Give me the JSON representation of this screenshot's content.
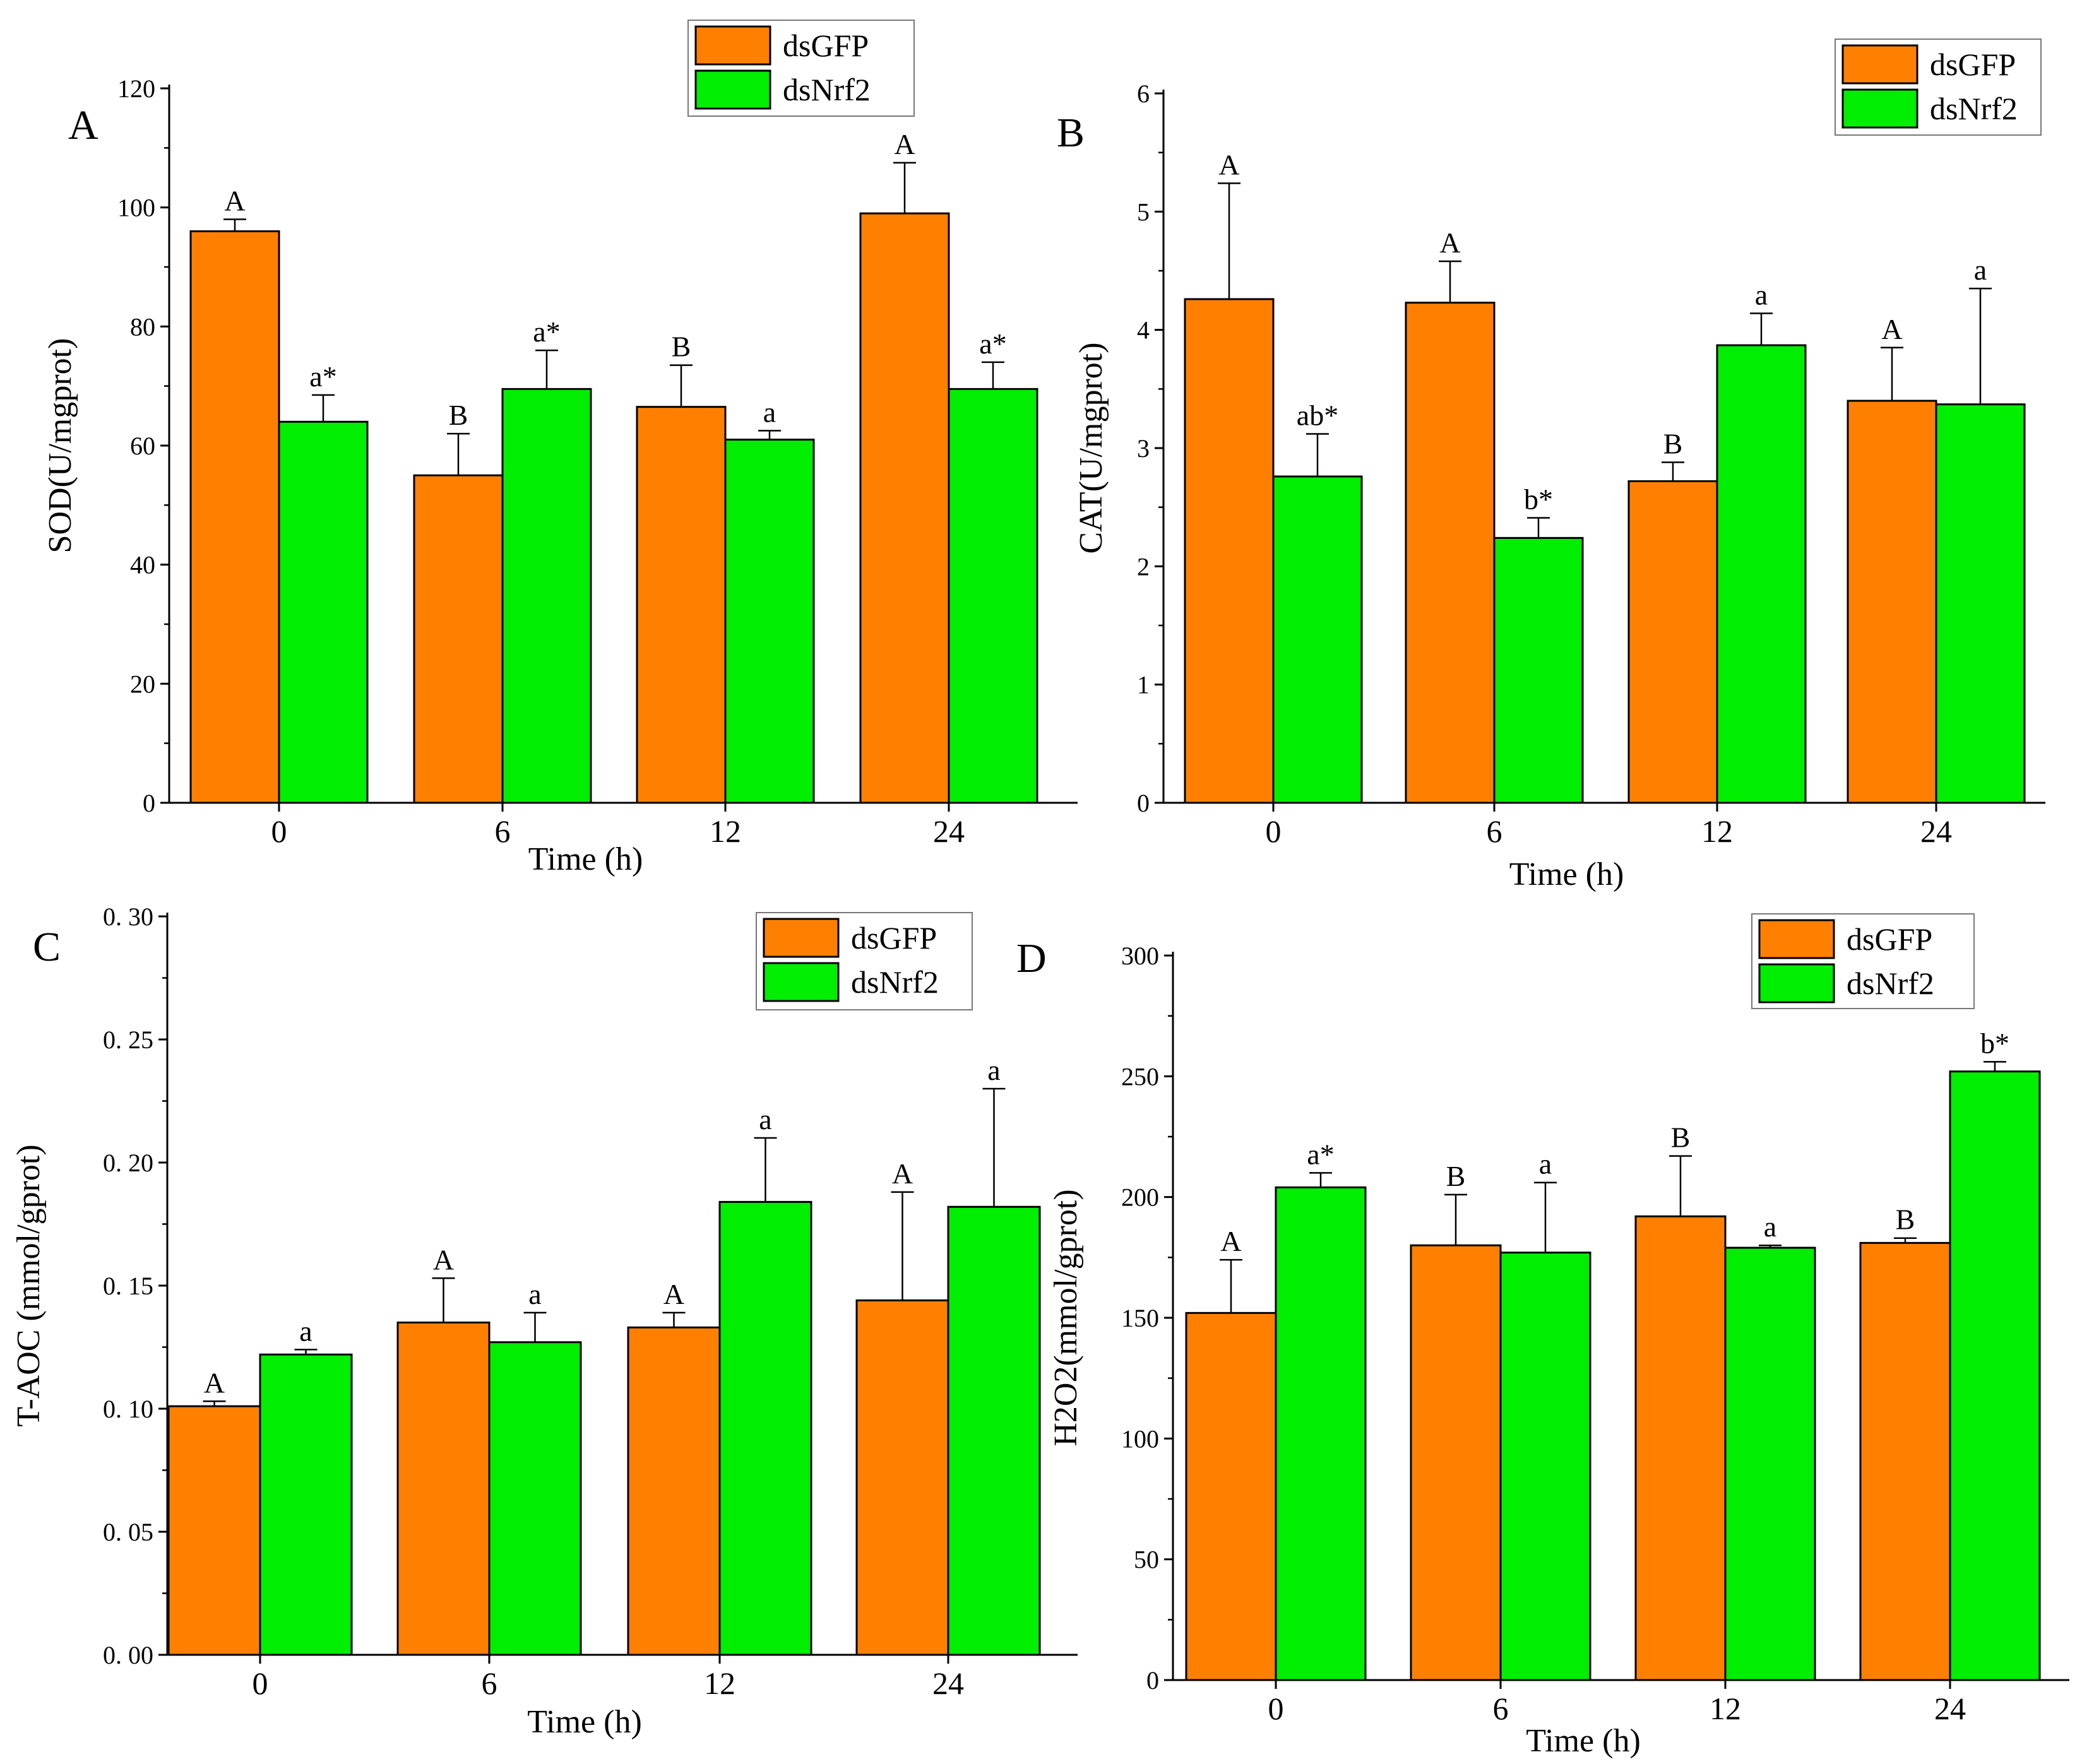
{
  "colors": {
    "dsGFP": "#ff8000",
    "dsNrf2": "#00ee00",
    "axis": "#000000"
  },
  "legend": [
    "dsGFP",
    "dsNrf2"
  ],
  "chart_data": [
    {
      "panel": "A",
      "type": "bar",
      "categories": [
        "0",
        "6",
        "12",
        "24"
      ],
      "xlabel": "Time (h)",
      "ylabel": "SOD(U/mgprot)",
      "ylim": [
        0,
        120
      ],
      "yticks": [
        "0",
        "20",
        "40",
        "60",
        "80",
        "100",
        "120"
      ],
      "legend_position": "top-center",
      "series": [
        {
          "name": "dsGFP",
          "values": [
            96,
            55,
            66.5,
            99
          ],
          "errors": [
            2,
            7,
            7,
            8.5
          ],
          "labels": [
            "A",
            "B",
            "B",
            "A"
          ]
        },
        {
          "name": "dsNrf2",
          "values": [
            64,
            69.5,
            61,
            69.5
          ],
          "errors": [
            4.5,
            6.5,
            1.5,
            4.5
          ],
          "labels": [
            "a*",
            "a*",
            "a",
            "a*"
          ]
        }
      ]
    },
    {
      "panel": "B",
      "type": "bar",
      "categories": [
        "0",
        "6",
        "12",
        "24"
      ],
      "xlabel": "Time (h)",
      "ylabel": "CAT(U/mgprot)",
      "ylim": [
        0,
        6
      ],
      "yticks": [
        "0",
        "1",
        "2",
        "3",
        "4",
        "5",
        "6"
      ],
      "legend_position": "top-right",
      "series": [
        {
          "name": "dsGFP",
          "values": [
            4.26,
            4.23,
            2.72,
            3.4
          ],
          "errors": [
            0.98,
            0.35,
            0.16,
            0.45
          ],
          "labels": [
            "A",
            "A",
            "B",
            "A"
          ]
        },
        {
          "name": "dsNrf2",
          "values": [
            2.76,
            2.24,
            3.87,
            3.37
          ],
          "errors": [
            0.36,
            0.17,
            0.27,
            0.98
          ],
          "labels": [
            "ab*",
            "b*",
            "a",
            "a"
          ]
        }
      ]
    },
    {
      "panel": "C",
      "type": "bar",
      "categories": [
        "0",
        "6",
        "12",
        "24"
      ],
      "xlabel": "Time (h)",
      "ylabel": "T-AOC (mmol/gprot)",
      "ylim": [
        0,
        0.3
      ],
      "yticks": [
        "0. 00",
        "0. 05",
        "0. 10",
        "0. 15",
        "0. 20",
        "0. 25",
        "0. 30"
      ],
      "legend_position": "top-right",
      "series": [
        {
          "name": "dsGFP",
          "values": [
            0.101,
            0.135,
            0.133,
            0.144
          ],
          "errors": [
            0.002,
            0.018,
            0.006,
            0.044
          ],
          "labels": [
            "A",
            "A",
            "A",
            "A"
          ]
        },
        {
          "name": "dsNrf2",
          "values": [
            0.122,
            0.127,
            0.184,
            0.182
          ],
          "errors": [
            0.002,
            0.012,
            0.026,
            0.048
          ],
          "labels": [
            "a",
            "a",
            "a",
            "a"
          ]
        }
      ]
    },
    {
      "panel": "D",
      "type": "bar",
      "categories": [
        "0",
        "6",
        "12",
        "24"
      ],
      "xlabel": "Time (h)",
      "ylabel": "H2O2(mmol/gprot)",
      "ylim": [
        0,
        300
      ],
      "yticks": [
        "0",
        "50",
        "100",
        "150",
        "200",
        "250",
        "300"
      ],
      "legend_position": "top-center",
      "series": [
        {
          "name": "dsGFP",
          "values": [
            152,
            180,
            192,
            181
          ],
          "errors": [
            22,
            21,
            25,
            2
          ],
          "labels": [
            "A",
            "B",
            "B",
            "B"
          ]
        },
        {
          "name": "dsNrf2",
          "values": [
            204,
            177,
            179,
            252
          ],
          "errors": [
            6,
            29,
            1,
            4
          ],
          "labels": [
            "a*",
            "a",
            "a",
            "b*"
          ]
        }
      ]
    }
  ]
}
